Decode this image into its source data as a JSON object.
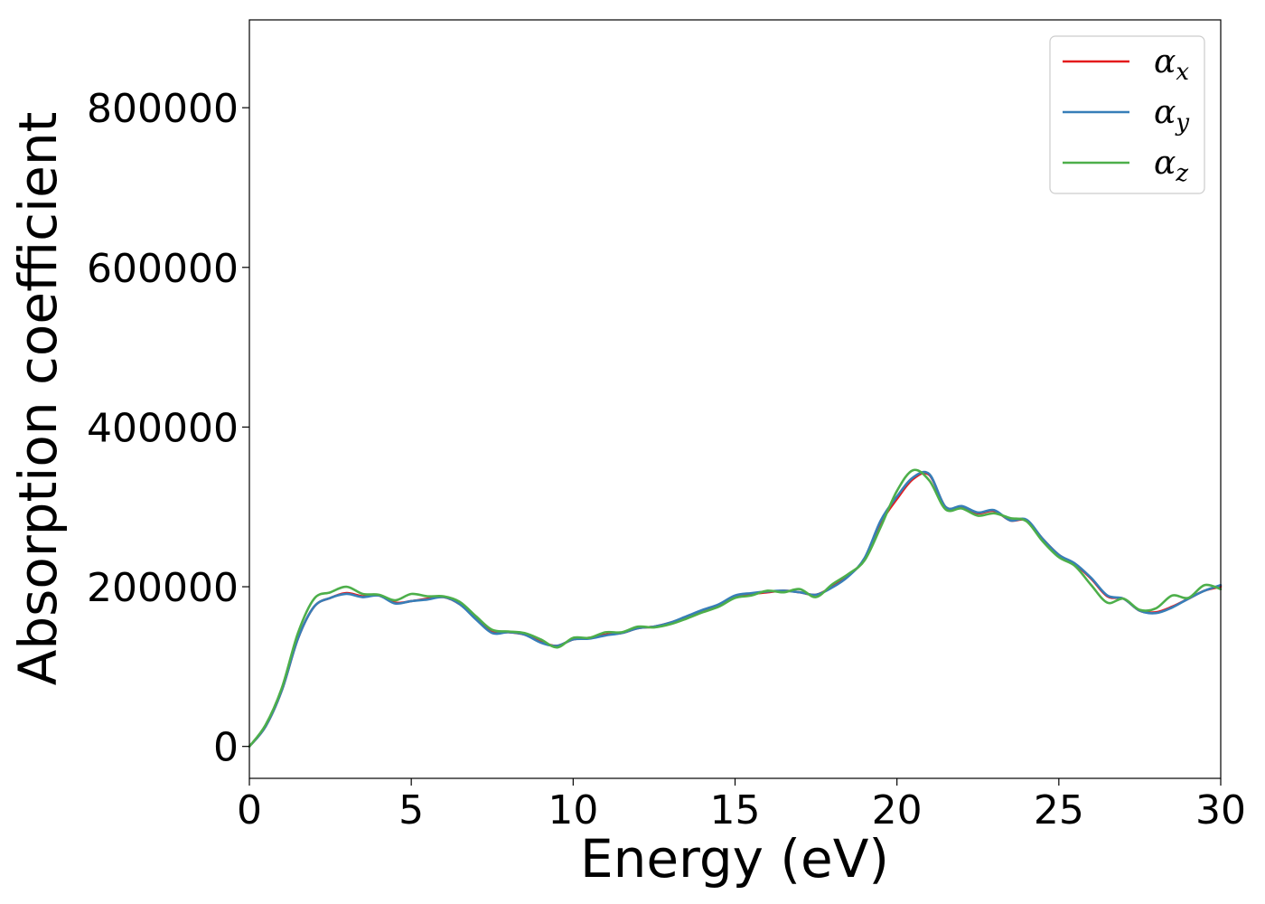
{
  "chart_data": {
    "type": "line",
    "title": "",
    "xlabel": "Energy (eV)",
    "ylabel": "Absorption coefficient",
    "xlim": [
      0,
      30
    ],
    "ylim": [
      -40000,
      910000
    ],
    "xticks": [
      0,
      5,
      10,
      15,
      20,
      25,
      30
    ],
    "xtick_labels": [
      "0",
      "5",
      "10",
      "15",
      "20",
      "25",
      "30"
    ],
    "yticks": [
      0,
      200000,
      400000,
      600000,
      800000
    ],
    "ytick_labels": [
      "0",
      "200000",
      "400000",
      "600000",
      "800000"
    ],
    "grid": false,
    "legend_position": "top-right",
    "series": [
      {
        "name": "αx",
        "legend_base": "α",
        "legend_sub": "x",
        "color": "#e41a1c",
        "points": [
          [
            0,
            0
          ],
          [
            0.5,
            25000
          ],
          [
            1,
            70000
          ],
          [
            1.5,
            135000
          ],
          [
            2,
            175000
          ],
          [
            2.5,
            186000
          ],
          [
            3,
            192000
          ],
          [
            3.5,
            188000
          ],
          [
            4,
            189000
          ],
          [
            4.5,
            180000
          ],
          [
            5,
            182000
          ],
          [
            5.5,
            185000
          ],
          [
            6,
            187000
          ],
          [
            6.5,
            178000
          ],
          [
            7,
            160000
          ],
          [
            7.5,
            143000
          ],
          [
            8,
            143000
          ],
          [
            8.5,
            140000
          ],
          [
            9,
            131000
          ],
          [
            9.5,
            126000
          ],
          [
            10,
            134000
          ],
          [
            10.5,
            136000
          ],
          [
            11,
            140000
          ],
          [
            11.5,
            142000
          ],
          [
            12,
            148000
          ],
          [
            12.5,
            150000
          ],
          [
            13,
            155000
          ],
          [
            13.5,
            162000
          ],
          [
            14,
            170000
          ],
          [
            14.5,
            177000
          ],
          [
            15,
            188000
          ],
          [
            15.5,
            191000
          ],
          [
            16,
            193000
          ],
          [
            16.5,
            195000
          ],
          [
            17,
            193000
          ],
          [
            17.5,
            190000
          ],
          [
            18,
            200000
          ],
          [
            18.5,
            214000
          ],
          [
            19,
            235000
          ],
          [
            19.5,
            280000
          ],
          [
            20,
            310000
          ],
          [
            20.5,
            335000
          ],
          [
            21,
            340000
          ],
          [
            21.5,
            300000
          ],
          [
            22,
            300000
          ],
          [
            22.5,
            292000
          ],
          [
            23,
            295000
          ],
          [
            23.5,
            283000
          ],
          [
            24,
            283000
          ],
          [
            24.5,
            260000
          ],
          [
            25,
            240000
          ],
          [
            25.5,
            228000
          ],
          [
            26,
            210000
          ],
          [
            26.5,
            188000
          ],
          [
            27,
            185000
          ],
          [
            27.5,
            170000
          ],
          [
            28,
            168000
          ],
          [
            28.5,
            175000
          ],
          [
            29,
            185000
          ],
          [
            29.5,
            195000
          ],
          [
            30,
            200000
          ]
        ]
      },
      {
        "name": "αy",
        "legend_base": "α",
        "legend_sub": "y",
        "color": "#377eb8",
        "points": [
          [
            0,
            0
          ],
          [
            0.5,
            25000
          ],
          [
            1,
            70000
          ],
          [
            1.5,
            135000
          ],
          [
            2,
            175000
          ],
          [
            2.5,
            186000
          ],
          [
            3,
            191000
          ],
          [
            3.5,
            187000
          ],
          [
            4,
            189000
          ],
          [
            4.5,
            179000
          ],
          [
            5,
            182000
          ],
          [
            5.5,
            184000
          ],
          [
            6,
            187000
          ],
          [
            6.5,
            178000
          ],
          [
            7,
            159000
          ],
          [
            7.5,
            142000
          ],
          [
            8,
            143000
          ],
          [
            8.5,
            140000
          ],
          [
            9,
            130000
          ],
          [
            9.5,
            126000
          ],
          [
            10,
            134000
          ],
          [
            10.5,
            135000
          ],
          [
            11,
            139000
          ],
          [
            11.5,
            142000
          ],
          [
            12,
            148000
          ],
          [
            12.5,
            150000
          ],
          [
            13,
            155000
          ],
          [
            13.5,
            163000
          ],
          [
            14,
            171000
          ],
          [
            14.5,
            178000
          ],
          [
            15,
            189000
          ],
          [
            15.5,
            192000
          ],
          [
            16,
            194000
          ],
          [
            16.5,
            195000
          ],
          [
            17,
            193000
          ],
          [
            17.5,
            190000
          ],
          [
            18,
            199000
          ],
          [
            18.5,
            213000
          ],
          [
            19,
            236000
          ],
          [
            19.5,
            283000
          ],
          [
            20,
            313000
          ],
          [
            20.5,
            337000
          ],
          [
            21,
            341000
          ],
          [
            21.5,
            300000
          ],
          [
            22,
            301000
          ],
          [
            22.5,
            293000
          ],
          [
            23,
            296000
          ],
          [
            23.5,
            283000
          ],
          [
            24,
            284000
          ],
          [
            24.5,
            260000
          ],
          [
            25,
            240000
          ],
          [
            25.5,
            229000
          ],
          [
            26,
            211000
          ],
          [
            26.5,
            189000
          ],
          [
            27,
            185000
          ],
          [
            27.5,
            170000
          ],
          [
            28,
            167000
          ],
          [
            28.5,
            174000
          ],
          [
            29,
            185000
          ],
          [
            29.5,
            195000
          ],
          [
            30,
            202000
          ]
        ]
      },
      {
        "name": "αz",
        "legend_base": "α",
        "legend_sub": "z",
        "color": "#4daf4a",
        "points": [
          [
            0,
            0
          ],
          [
            0.5,
            27000
          ],
          [
            1,
            73000
          ],
          [
            1.5,
            142000
          ],
          [
            2,
            185000
          ],
          [
            2.5,
            193000
          ],
          [
            3,
            200000
          ],
          [
            3.5,
            191000
          ],
          [
            4,
            190000
          ],
          [
            4.5,
            183000
          ],
          [
            5,
            191000
          ],
          [
            5.5,
            188000
          ],
          [
            6,
            188000
          ],
          [
            6.5,
            181000
          ],
          [
            7,
            163000
          ],
          [
            7.5,
            146000
          ],
          [
            8,
            144000
          ],
          [
            8.5,
            142000
          ],
          [
            9,
            134000
          ],
          [
            9.5,
            124000
          ],
          [
            10,
            136000
          ],
          [
            10.5,
            136000
          ],
          [
            11,
            143000
          ],
          [
            11.5,
            143000
          ],
          [
            12,
            150000
          ],
          [
            12.5,
            149000
          ],
          [
            13,
            153000
          ],
          [
            13.5,
            160000
          ],
          [
            14,
            168000
          ],
          [
            14.5,
            175000
          ],
          [
            15,
            186000
          ],
          [
            15.5,
            189000
          ],
          [
            16,
            195000
          ],
          [
            16.5,
            193000
          ],
          [
            17,
            197000
          ],
          [
            17.5,
            187000
          ],
          [
            18,
            203000
          ],
          [
            18.5,
            216000
          ],
          [
            19,
            233000
          ],
          [
            19.5,
            275000
          ],
          [
            20,
            320000
          ],
          [
            20.5,
            346000
          ],
          [
            21,
            333000
          ],
          [
            21.5,
            297000
          ],
          [
            22,
            298000
          ],
          [
            22.5,
            289000
          ],
          [
            23,
            292000
          ],
          [
            23.5,
            286000
          ],
          [
            24,
            282000
          ],
          [
            24.5,
            257000
          ],
          [
            25,
            237000
          ],
          [
            25.5,
            226000
          ],
          [
            26,
            202000
          ],
          [
            26.5,
            180000
          ],
          [
            27,
            185000
          ],
          [
            27.5,
            171000
          ],
          [
            28,
            173000
          ],
          [
            28.5,
            189000
          ],
          [
            29,
            186000
          ],
          [
            29.5,
            202000
          ],
          [
            30,
            197000
          ]
        ]
      }
    ]
  }
}
